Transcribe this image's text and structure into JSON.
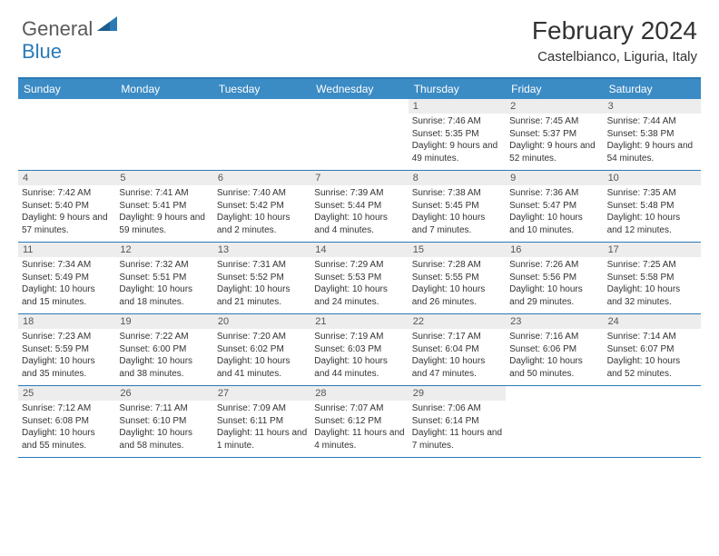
{
  "logo": {
    "text1": "General",
    "text2": "Blue"
  },
  "title": "February 2024",
  "location": "Castelbianco, Liguria, Italy",
  "colors": {
    "header_bg": "#3b8bc4",
    "border": "#2a7ab8",
    "daynum_bg": "#ededed",
    "text": "#333333",
    "logo_gray": "#5a5a5a",
    "logo_blue": "#2a7ab8"
  },
  "weekdays": [
    "Sunday",
    "Monday",
    "Tuesday",
    "Wednesday",
    "Thursday",
    "Friday",
    "Saturday"
  ],
  "weeks": [
    [
      {
        "n": "",
        "sr": "",
        "ss": "",
        "dl": ""
      },
      {
        "n": "",
        "sr": "",
        "ss": "",
        "dl": ""
      },
      {
        "n": "",
        "sr": "",
        "ss": "",
        "dl": ""
      },
      {
        "n": "",
        "sr": "",
        "ss": "",
        "dl": ""
      },
      {
        "n": "1",
        "sr": "Sunrise: 7:46 AM",
        "ss": "Sunset: 5:35 PM",
        "dl": "Daylight: 9 hours and 49 minutes."
      },
      {
        "n": "2",
        "sr": "Sunrise: 7:45 AM",
        "ss": "Sunset: 5:37 PM",
        "dl": "Daylight: 9 hours and 52 minutes."
      },
      {
        "n": "3",
        "sr": "Sunrise: 7:44 AM",
        "ss": "Sunset: 5:38 PM",
        "dl": "Daylight: 9 hours and 54 minutes."
      }
    ],
    [
      {
        "n": "4",
        "sr": "Sunrise: 7:42 AM",
        "ss": "Sunset: 5:40 PM",
        "dl": "Daylight: 9 hours and 57 minutes."
      },
      {
        "n": "5",
        "sr": "Sunrise: 7:41 AM",
        "ss": "Sunset: 5:41 PM",
        "dl": "Daylight: 9 hours and 59 minutes."
      },
      {
        "n": "6",
        "sr": "Sunrise: 7:40 AM",
        "ss": "Sunset: 5:42 PM",
        "dl": "Daylight: 10 hours and 2 minutes."
      },
      {
        "n": "7",
        "sr": "Sunrise: 7:39 AM",
        "ss": "Sunset: 5:44 PM",
        "dl": "Daylight: 10 hours and 4 minutes."
      },
      {
        "n": "8",
        "sr": "Sunrise: 7:38 AM",
        "ss": "Sunset: 5:45 PM",
        "dl": "Daylight: 10 hours and 7 minutes."
      },
      {
        "n": "9",
        "sr": "Sunrise: 7:36 AM",
        "ss": "Sunset: 5:47 PM",
        "dl": "Daylight: 10 hours and 10 minutes."
      },
      {
        "n": "10",
        "sr": "Sunrise: 7:35 AM",
        "ss": "Sunset: 5:48 PM",
        "dl": "Daylight: 10 hours and 12 minutes."
      }
    ],
    [
      {
        "n": "11",
        "sr": "Sunrise: 7:34 AM",
        "ss": "Sunset: 5:49 PM",
        "dl": "Daylight: 10 hours and 15 minutes."
      },
      {
        "n": "12",
        "sr": "Sunrise: 7:32 AM",
        "ss": "Sunset: 5:51 PM",
        "dl": "Daylight: 10 hours and 18 minutes."
      },
      {
        "n": "13",
        "sr": "Sunrise: 7:31 AM",
        "ss": "Sunset: 5:52 PM",
        "dl": "Daylight: 10 hours and 21 minutes."
      },
      {
        "n": "14",
        "sr": "Sunrise: 7:29 AM",
        "ss": "Sunset: 5:53 PM",
        "dl": "Daylight: 10 hours and 24 minutes."
      },
      {
        "n": "15",
        "sr": "Sunrise: 7:28 AM",
        "ss": "Sunset: 5:55 PM",
        "dl": "Daylight: 10 hours and 26 minutes."
      },
      {
        "n": "16",
        "sr": "Sunrise: 7:26 AM",
        "ss": "Sunset: 5:56 PM",
        "dl": "Daylight: 10 hours and 29 minutes."
      },
      {
        "n": "17",
        "sr": "Sunrise: 7:25 AM",
        "ss": "Sunset: 5:58 PM",
        "dl": "Daylight: 10 hours and 32 minutes."
      }
    ],
    [
      {
        "n": "18",
        "sr": "Sunrise: 7:23 AM",
        "ss": "Sunset: 5:59 PM",
        "dl": "Daylight: 10 hours and 35 minutes."
      },
      {
        "n": "19",
        "sr": "Sunrise: 7:22 AM",
        "ss": "Sunset: 6:00 PM",
        "dl": "Daylight: 10 hours and 38 minutes."
      },
      {
        "n": "20",
        "sr": "Sunrise: 7:20 AM",
        "ss": "Sunset: 6:02 PM",
        "dl": "Daylight: 10 hours and 41 minutes."
      },
      {
        "n": "21",
        "sr": "Sunrise: 7:19 AM",
        "ss": "Sunset: 6:03 PM",
        "dl": "Daylight: 10 hours and 44 minutes."
      },
      {
        "n": "22",
        "sr": "Sunrise: 7:17 AM",
        "ss": "Sunset: 6:04 PM",
        "dl": "Daylight: 10 hours and 47 minutes."
      },
      {
        "n": "23",
        "sr": "Sunrise: 7:16 AM",
        "ss": "Sunset: 6:06 PM",
        "dl": "Daylight: 10 hours and 50 minutes."
      },
      {
        "n": "24",
        "sr": "Sunrise: 7:14 AM",
        "ss": "Sunset: 6:07 PM",
        "dl": "Daylight: 10 hours and 52 minutes."
      }
    ],
    [
      {
        "n": "25",
        "sr": "Sunrise: 7:12 AM",
        "ss": "Sunset: 6:08 PM",
        "dl": "Daylight: 10 hours and 55 minutes."
      },
      {
        "n": "26",
        "sr": "Sunrise: 7:11 AM",
        "ss": "Sunset: 6:10 PM",
        "dl": "Daylight: 10 hours and 58 minutes."
      },
      {
        "n": "27",
        "sr": "Sunrise: 7:09 AM",
        "ss": "Sunset: 6:11 PM",
        "dl": "Daylight: 11 hours and 1 minute."
      },
      {
        "n": "28",
        "sr": "Sunrise: 7:07 AM",
        "ss": "Sunset: 6:12 PM",
        "dl": "Daylight: 11 hours and 4 minutes."
      },
      {
        "n": "29",
        "sr": "Sunrise: 7:06 AM",
        "ss": "Sunset: 6:14 PM",
        "dl": "Daylight: 11 hours and 7 minutes."
      },
      {
        "n": "",
        "sr": "",
        "ss": "",
        "dl": ""
      },
      {
        "n": "",
        "sr": "",
        "ss": "",
        "dl": ""
      }
    ]
  ]
}
